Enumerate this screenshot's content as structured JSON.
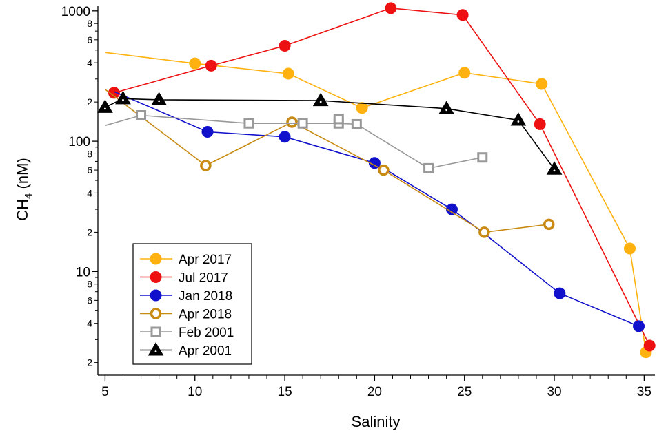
{
  "chart_data": {
    "type": "line",
    "xlabel": "Salinity",
    "ylabel": "CH",
    "ylabel_sub": "4",
    "ylabel_unit": " (nM)",
    "y_scale": "log",
    "xlim": [
      4.6,
      35.6
    ],
    "ylim": [
      1.6,
      1100
    ],
    "x_ticks": [
      5,
      10,
      15,
      20,
      25,
      30,
      35
    ],
    "y_major_ticks": [
      {
        "v": 10,
        "label": "10"
      },
      {
        "v": 100,
        "label": "100"
      },
      {
        "v": 1000,
        "label": "1000"
      }
    ],
    "y_minor_ticks": [
      {
        "v": 2,
        "label": "2"
      },
      {
        "v": 4,
        "label": "4"
      },
      {
        "v": 6,
        "label": "6"
      },
      {
        "v": 8,
        "label": "8"
      },
      {
        "v": 20,
        "label": "2"
      },
      {
        "v": 40,
        "label": "4"
      },
      {
        "v": 60,
        "label": "6"
      },
      {
        "v": 80,
        "label": "8"
      },
      {
        "v": 200,
        "label": "2"
      },
      {
        "v": 400,
        "label": "4"
      },
      {
        "v": 600,
        "label": "6"
      },
      {
        "v": 800,
        "label": "8"
      }
    ],
    "legend_position": "bottom-left",
    "series": [
      {
        "name": "Apr 2017",
        "color": "#ffb20f",
        "marker": "circle",
        "line": [
          [
            5,
            480
          ],
          [
            10,
            395
          ],
          [
            15.2,
            330
          ],
          [
            19.3,
            180
          ],
          [
            25,
            335
          ],
          [
            29.3,
            275
          ],
          [
            34.2,
            15
          ],
          [
            35.1,
            2.4
          ]
        ],
        "markers": [
          [
            10,
            395
          ],
          [
            15.2,
            330
          ],
          [
            19.3,
            180
          ],
          [
            25,
            335
          ],
          [
            29.3,
            275
          ],
          [
            34.2,
            15
          ],
          [
            35.1,
            2.4
          ]
        ]
      },
      {
        "name": "Jul 2017",
        "color": "#ee1111",
        "marker": "circle",
        "line": [
          [
            5.5,
            235
          ],
          [
            10.9,
            380
          ],
          [
            15,
            540
          ],
          [
            20.9,
            1050
          ],
          [
            24.9,
            930
          ],
          [
            29.2,
            135
          ],
          [
            35.3,
            2.7
          ]
        ],
        "markers": [
          [
            5.5,
            235
          ],
          [
            10.9,
            380
          ],
          [
            15,
            540
          ],
          [
            20.9,
            1050
          ],
          [
            24.9,
            930
          ],
          [
            29.2,
            135
          ],
          [
            35.3,
            2.7
          ]
        ]
      },
      {
        "name": "Jan 2018",
        "color": "#1111cc",
        "marker": "circle",
        "line": [
          [
            5.5,
            240
          ],
          [
            10.7,
            118
          ],
          [
            15,
            108
          ],
          [
            20,
            68
          ],
          [
            24.3,
            30
          ],
          [
            26,
            20
          ],
          [
            30.3,
            6.8
          ],
          [
            34.7,
            3.8
          ]
        ],
        "markers": [
          [
            10.7,
            118
          ],
          [
            15,
            108
          ],
          [
            20,
            68
          ],
          [
            24.3,
            30
          ],
          [
            30.3,
            6.8
          ],
          [
            34.7,
            3.8
          ]
        ]
      },
      {
        "name": "Apr 2018",
        "color": "#c88a12",
        "marker": "open-circle",
        "line": [
          [
            5,
            250
          ],
          [
            10.6,
            65
          ],
          [
            15.4,
            140
          ],
          [
            20.5,
            60
          ],
          [
            26.1,
            20
          ],
          [
            29.7,
            23
          ]
        ],
        "markers": [
          [
            10.6,
            65
          ],
          [
            15.4,
            140
          ],
          [
            20.5,
            60
          ],
          [
            26.1,
            20
          ],
          [
            29.7,
            23
          ]
        ]
      },
      {
        "name": "Feb 2001",
        "color": "#999999",
        "marker": "open-square",
        "line": [
          [
            5,
            132
          ],
          [
            7,
            158
          ],
          [
            13,
            137
          ],
          [
            16,
            137
          ],
          [
            18,
            137
          ],
          [
            19,
            135
          ],
          [
            23,
            62
          ],
          [
            26,
            75
          ]
        ],
        "markers": [
          [
            7,
            158
          ],
          [
            13,
            137
          ],
          [
            16,
            137
          ],
          [
            18,
            137
          ],
          [
            18,
            148
          ],
          [
            19,
            135
          ],
          [
            23,
            62
          ],
          [
            26,
            75
          ]
        ]
      },
      {
        "name": "Apr 2001",
        "color": "#000000",
        "marker": "triangle",
        "line": [
          [
            5,
            182
          ],
          [
            6,
            212
          ],
          [
            8,
            208
          ],
          [
            17,
            205
          ],
          [
            24,
            178
          ],
          [
            28,
            145
          ],
          [
            30,
            61
          ]
        ],
        "markers": [
          [
            5,
            182
          ],
          [
            6,
            212
          ],
          [
            8,
            208
          ],
          [
            17,
            205
          ],
          [
            24,
            178
          ],
          [
            28,
            145
          ],
          [
            30,
            61
          ]
        ]
      }
    ]
  }
}
